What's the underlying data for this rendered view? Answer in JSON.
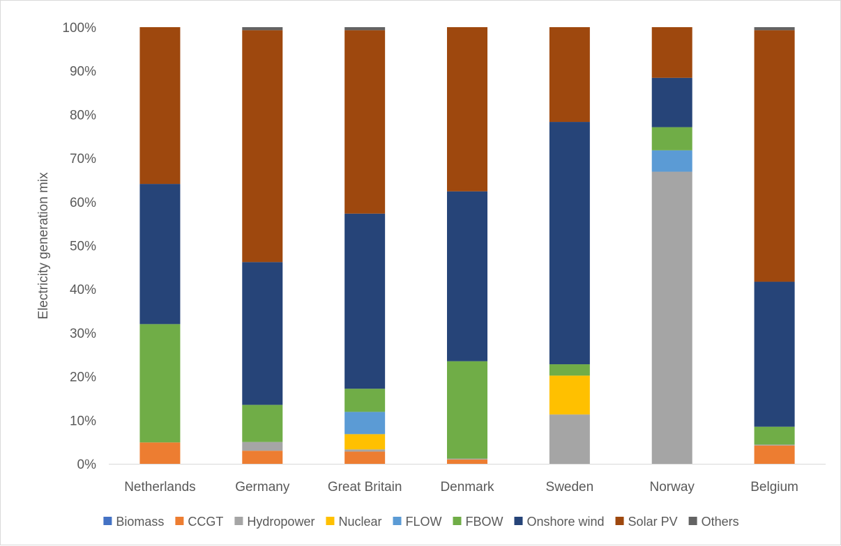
{
  "chart_data": {
    "type": "bar",
    "stacked": true,
    "title": "",
    "xlabel": "",
    "ylabel": "Electricity generation mix",
    "ylim": [
      0,
      100
    ],
    "yticks": [
      "0%",
      "10%",
      "20%",
      "30%",
      "40%",
      "50%",
      "60%",
      "70%",
      "80%",
      "90%",
      "100%"
    ],
    "grid": false,
    "legend_position": "bottom",
    "categories": [
      "Netherlands",
      "Germany",
      "Great Britain",
      "Denmark",
      "Sweden",
      "Norway",
      "Belgium"
    ],
    "series": [
      {
        "name": "Biomass",
        "color": "#4472C4",
        "values": [
          0,
          0,
          0,
          0,
          0,
          0,
          0
        ]
      },
      {
        "name": "CCGT",
        "color": "#ED7D31",
        "values": [
          4.9,
          3.0,
          2.8,
          1.0,
          0,
          0,
          4.2
        ]
      },
      {
        "name": "Hydropower",
        "color": "#A5A5A5",
        "values": [
          0,
          2.0,
          0.5,
          0.2,
          11.3,
          66.9,
          0.2
        ]
      },
      {
        "name": "Nuclear",
        "color": "#FFC000",
        "values": [
          0,
          0,
          3.5,
          0,
          8.9,
          0,
          0
        ]
      },
      {
        "name": "FLOW",
        "color": "#5B9BD5",
        "values": [
          0,
          0,
          5.1,
          0,
          0,
          4.9,
          0
        ]
      },
      {
        "name": "FBOW",
        "color": "#70AD47",
        "values": [
          27.1,
          8.5,
          5.3,
          22.3,
          2.6,
          5.3,
          4.1
        ]
      },
      {
        "name": "Onshore wind",
        "color": "#264478",
        "values": [
          32.1,
          32.7,
          40.1,
          38.9,
          55.5,
          11.3,
          33.2
        ]
      },
      {
        "name": "Solar PV",
        "color": "#9E480E",
        "values": [
          35.9,
          53.1,
          42.0,
          37.6,
          21.7,
          11.6,
          57.6
        ]
      },
      {
        "name": "Others",
        "color": "#636363",
        "values": [
          0,
          0.7,
          0.7,
          0,
          0,
          0,
          0.7
        ]
      }
    ]
  }
}
